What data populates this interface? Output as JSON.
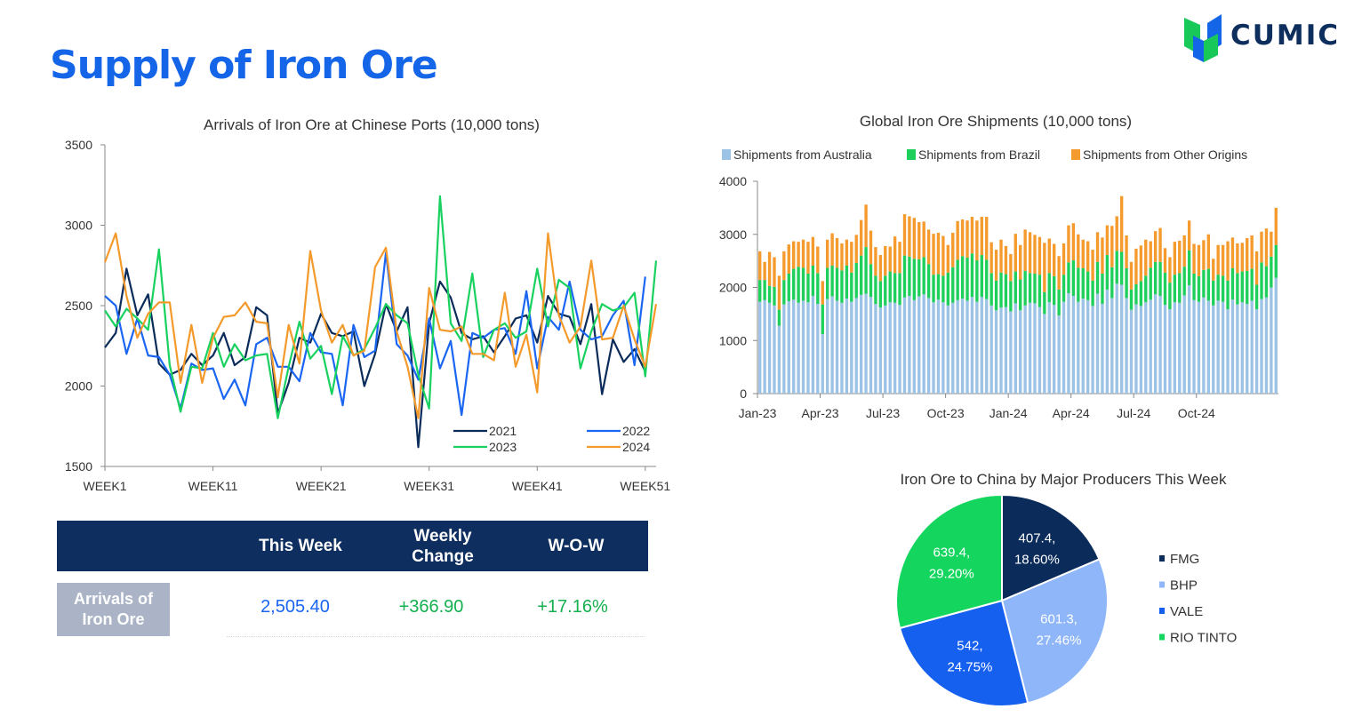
{
  "header": {
    "title": "Supply of Iron Ore",
    "logo_text": "CUMIC"
  },
  "colors": {
    "title_blue": "#1565e8",
    "navy": "#0d2e5e",
    "s2021": "#0b2c5a",
    "s2022": "#1a66f2",
    "s2023": "#18d15f",
    "s2024": "#f39a2b",
    "australia": "#9cc3e6",
    "brazil": "#1fcf5c",
    "other": "#f59a2c",
    "fmg": "#0b2c5a",
    "bhp": "#8fb6f8",
    "vale": "#1660f0",
    "rio": "#14d65f"
  },
  "chart_data": [
    {
      "type": "line",
      "title": "Arrivals of Iron Ore at Chinese Ports (10,000  tons)",
      "x_tick_labels": [
        "WEEK1",
        "WEEK11",
        "WEEK21",
        "WEEK31",
        "WEEK41",
        "WEEK51"
      ],
      "x_tick_weeks": [
        1,
        11,
        21,
        31,
        41,
        51
      ],
      "y_ticks": [
        1500,
        2000,
        2500,
        3000,
        3500
      ],
      "ylim": [
        1500,
        3500
      ],
      "xlim": [
        1,
        52
      ],
      "series": [
        {
          "name": "2021",
          "values": [
            2240,
            2330,
            2730,
            2440,
            2570,
            2140,
            2070,
            2100,
            2200,
            2130,
            2190,
            2330,
            2130,
            2180,
            2490,
            2440,
            1830,
            2020,
            2300,
            2270,
            2450,
            2330,
            2310,
            2340,
            2000,
            2200,
            2510,
            2340,
            2490,
            1620,
            2390,
            2650,
            2550,
            2330,
            2290,
            2310,
            2210,
            2310,
            2420,
            2440,
            2270,
            2560,
            2450,
            2430,
            2260,
            2510,
            1950,
            2290,
            2150,
            2230,
            2090
          ]
        },
        {
          "name": "2022",
          "values": [
            2560,
            2500,
            2200,
            2420,
            2190,
            2180,
            2070,
            1860,
            2140,
            2100,
            2110,
            1920,
            2040,
            1880,
            2260,
            2300,
            2120,
            2120,
            2030,
            2330,
            2210,
            2200,
            1880,
            2380,
            2180,
            2220,
            2830,
            2260,
            2190,
            2040,
            2420,
            2110,
            2280,
            1820,
            2330,
            2300,
            2350,
            2360,
            2200,
            2590,
            2110,
            2430,
            2350,
            2650,
            2350,
            2290,
            2310,
            2440,
            2530,
            2130,
            2680
          ]
        },
        {
          "name": "2023",
          "values": [
            2470,
            2370,
            2480,
            2420,
            2350,
            2850,
            2130,
            1840,
            2120,
            2110,
            2330,
            2120,
            2260,
            2160,
            2190,
            2200,
            1800,
            2120,
            2400,
            2170,
            2250,
            1950,
            2310,
            2190,
            2230,
            2360,
            2510,
            2440,
            2390,
            2070,
            1860,
            3180,
            2390,
            2280,
            2700,
            2180,
            2350,
            2390,
            2300,
            2340,
            2730,
            2370,
            2660,
            2610,
            2110,
            2340,
            2510,
            2470,
            2490,
            2580,
            2060,
            2780
          ]
        },
        {
          "name": "2024",
          "values": [
            2770,
            2950,
            2560,
            2300,
            2450,
            2520,
            2520,
            2020,
            2380,
            2020,
            2300,
            2430,
            2440,
            2520,
            2400,
            2390,
            1930,
            2380,
            2140,
            2840,
            2470,
            2270,
            2380,
            2190,
            2220,
            2740,
            2860,
            2340,
            2120,
            1800,
            2610,
            2350,
            2340,
            2370,
            2200,
            2200,
            2160,
            2580,
            2120,
            2320,
            1960,
            2950,
            2440,
            2270,
            2370,
            2780,
            2290,
            2300,
            2500,
            2290,
            2120,
            2510
          ]
        }
      ],
      "legend": "inside-bottom-right"
    },
    {
      "type": "bar",
      "stacked": true,
      "title": "Global Iron Ore Shipments (10,000 tons)",
      "x_tick_labels": [
        "Jan-23",
        "Apr-23",
        "Jul-23",
        "Oct-23",
        "Jan-24",
        "Apr-24",
        "Jul-24",
        "Oct-24"
      ],
      "y_ticks": [
        0,
        1000,
        2000,
        3000,
        4000
      ],
      "ylim": [
        0,
        4000
      ],
      "series": [
        {
          "name": "Shipments from Australia",
          "values": [
            1730,
            1760,
            1710,
            1660,
            1280,
            1680,
            1740,
            1770,
            1710,
            1750,
            1720,
            1840,
            1690,
            1120,
            1780,
            1830,
            1750,
            1710,
            1790,
            1730,
            1800,
            1860,
            1880,
            1820,
            1690,
            1620,
            1660,
            1720,
            1710,
            1670,
            1810,
            1840,
            1760,
            1830,
            1870,
            1800,
            1720,
            1770,
            1720,
            1660,
            1710,
            1760,
            1790,
            1750,
            1820,
            1730,
            1820,
            1780,
            1660,
            1570,
            1620,
            1630,
            1550,
            1700,
            1570,
            1660,
            1710,
            1700,
            1630,
            1500,
            1720,
            1670,
            1470,
            1730,
            1890,
            1840,
            1730,
            1790,
            1760,
            1650,
            1880,
            1690,
            1960,
            1800,
            2070,
            2050,
            1800,
            1580,
            1680,
            1650,
            1720,
            1770,
            1870,
            1840,
            1670,
            1590,
            1720,
            1710,
            1850,
            2040,
            1760,
            1730,
            1810,
            1750,
            1660,
            1750,
            1730,
            1590,
            1770,
            1680,
            1720,
            1690,
            1750,
            1590,
            1780,
            1810,
            2000,
            2180
          ]
        },
        {
          "name": "Shipments from Brazil",
          "values": [
            410,
            380,
            320,
            350,
            300,
            460,
            520,
            580,
            680,
            620,
            540,
            570,
            580,
            560,
            590,
            580,
            620,
            610,
            620,
            550,
            660,
            740,
            880,
            620,
            530,
            500,
            560,
            580,
            560,
            600,
            790,
            740,
            780,
            700,
            700,
            640,
            520,
            480,
            500,
            620,
            670,
            760,
            800,
            810,
            820,
            780,
            790,
            740,
            610,
            560,
            660,
            620,
            570,
            600,
            580,
            650,
            560,
            560,
            610,
            410,
            550,
            540,
            490,
            510,
            580,
            670,
            640,
            570,
            540,
            480,
            600,
            570,
            650,
            580,
            620,
            620,
            560,
            380,
            380,
            470,
            500,
            600,
            610,
            640,
            610,
            500,
            520,
            560,
            540,
            660,
            500,
            480,
            520,
            600,
            470,
            490,
            490,
            540,
            590,
            590,
            580,
            620,
            600,
            460,
            690,
            590,
            580,
            620
          ]
        },
        {
          "name": "Shipments from Other Origins",
          "values": [
            540,
            340,
            640,
            560,
            640,
            540,
            550,
            520,
            470,
            530,
            600,
            540,
            500,
            440,
            530,
            610,
            560,
            510,
            490,
            580,
            530,
            670,
            800,
            630,
            540,
            490,
            560,
            470,
            690,
            590,
            780,
            760,
            770,
            700,
            670,
            650,
            770,
            780,
            750,
            520,
            650,
            730,
            690,
            700,
            690,
            750,
            720,
            810,
            580,
            580,
            620,
            530,
            510,
            710,
            650,
            780,
            770,
            730,
            710,
            930,
            650,
            610,
            630,
            590,
            700,
            700,
            630,
            540,
            570,
            580,
            560,
            680,
            560,
            780,
            650,
            1050,
            620,
            520,
            670,
            670,
            680,
            500,
            580,
            640,
            460,
            480,
            620,
            610,
            590,
            560,
            560,
            590,
            560,
            650,
            410,
            560,
            580,
            740,
            580,
            560,
            540,
            620,
            630,
            630,
            580,
            710,
            470,
            700
          ]
        }
      ],
      "legend": "top"
    },
    {
      "type": "pie",
      "title": "Iron Ore to China by Major Producers This Week",
      "slices": [
        {
          "name": "FMG",
          "value": 407.4,
          "label_value": "407.4,",
          "label_pct": "18.60%",
          "percent": 18.6
        },
        {
          "name": "BHP",
          "value": 601.3,
          "label_value": "601.3,",
          "label_pct": "27.46%",
          "percent": 27.46
        },
        {
          "name": "VALE",
          "value": 542,
          "label_value": "542,",
          "label_pct": "24.75%",
          "percent": 24.75
        },
        {
          "name": "RIO TINTO",
          "value": 639.4,
          "label_value": "639.4,",
          "label_pct": "29.20%",
          "percent": 29.2
        }
      ],
      "legend": "right"
    }
  ],
  "table": {
    "headers": [
      "This Week",
      "Weekly Change",
      "W-O-W"
    ],
    "row_label": "Arrivals of Iron Ore",
    "this_week": "2,505.40",
    "weekly_change": "+366.90",
    "wow": "+17.16%"
  }
}
